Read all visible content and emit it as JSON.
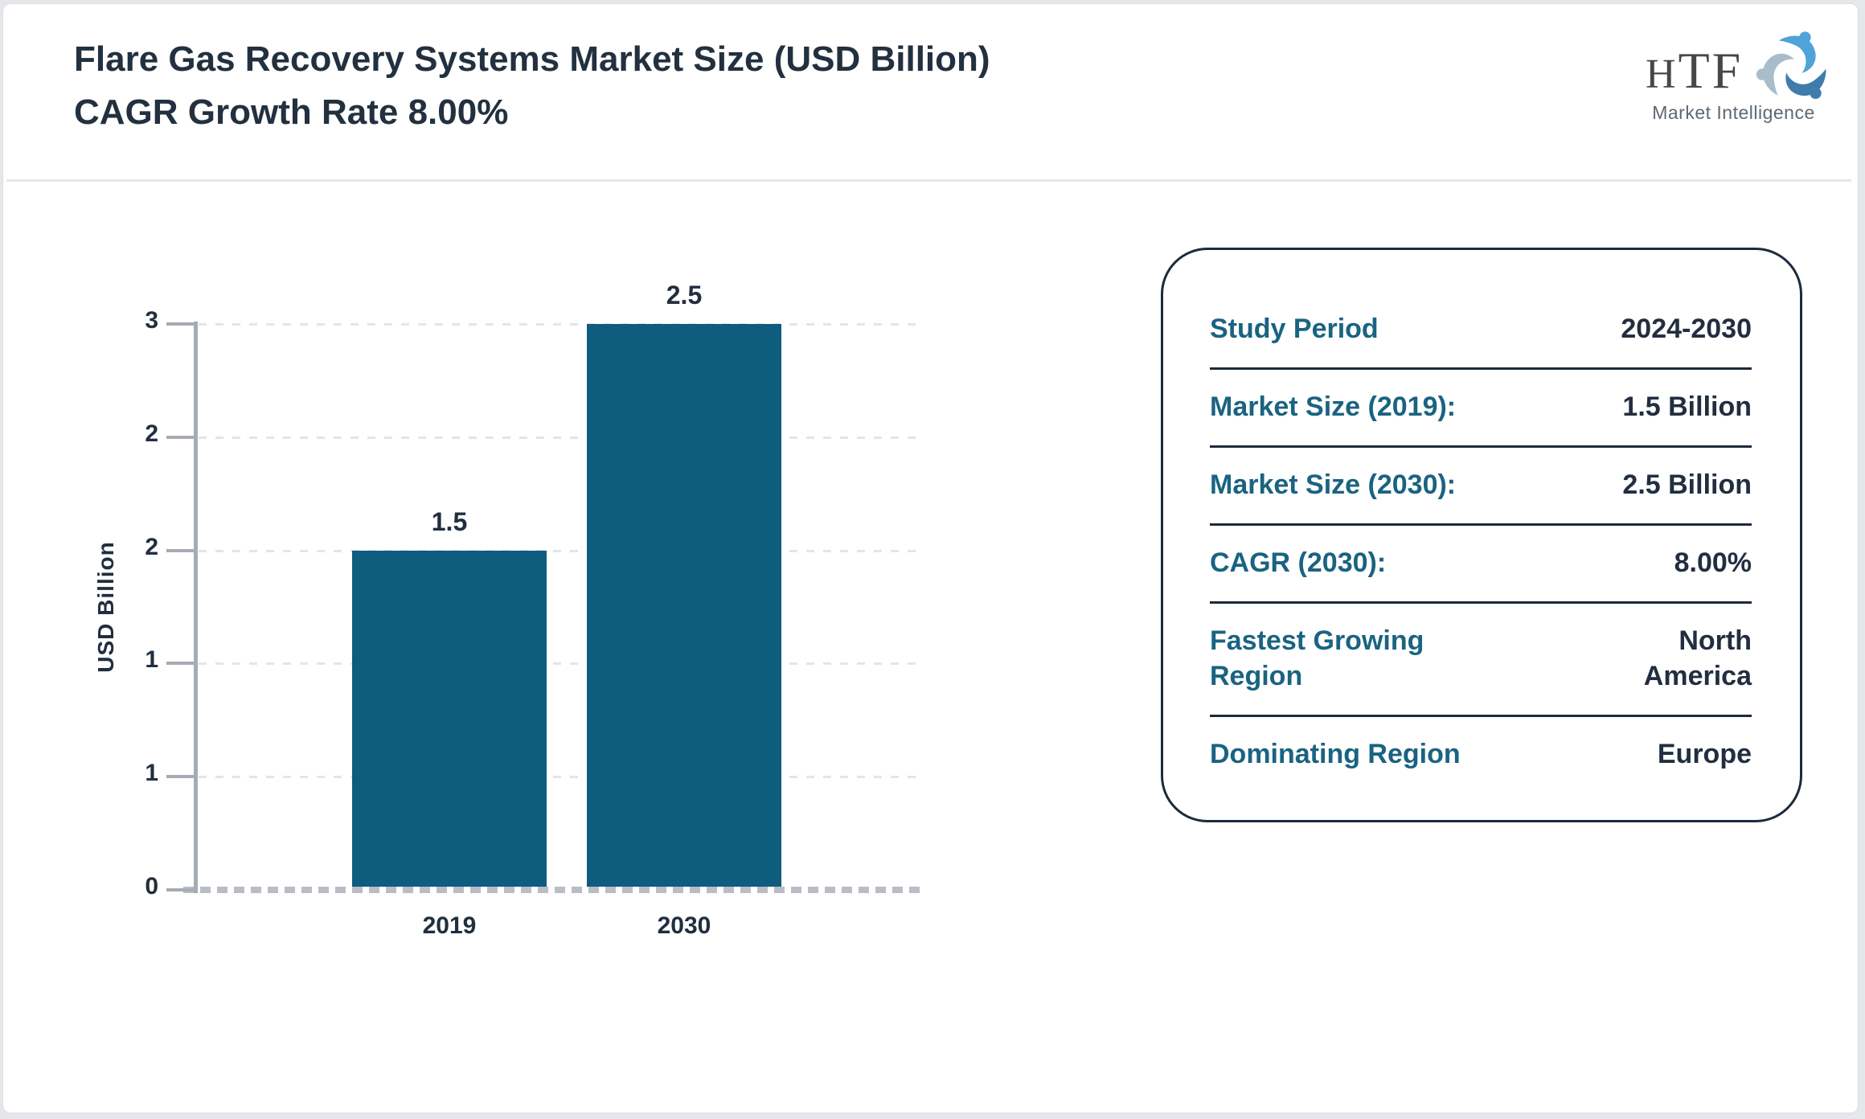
{
  "page": {
    "title": "Flare Gas Recovery Systems Market Size (USD Billion) CAGR Growth Rate 8.00%",
    "background_color": "#e6e7eb",
    "card_color": "#ffffff",
    "title_color": "#22303f"
  },
  "logo": {
    "text": "HTF",
    "subtext": "Market Intelligence",
    "icon": "htf-swirl-figures-icon",
    "colors": {
      "text": "#474747",
      "subtext": "#5d6872",
      "swirl_light_blue": "#4fa3d8",
      "swirl_dark_blue": "#3f7cab",
      "swirl_gray_blue": "#a9bcca"
    }
  },
  "chart_data": {
    "type": "bar",
    "title": "",
    "categories": [
      "2019",
      "2030"
    ],
    "values": [
      1.5,
      2.5
    ],
    "value_labels": [
      "1.5",
      "2.5"
    ],
    "bar_drawn_to_axis_values": [
      1.8,
      3.0
    ],
    "xlabel": "",
    "ylabel": "USD Billion",
    "ylim": [
      0,
      3
    ],
    "ytick_labels_bottom_to_top": [
      "0",
      "1",
      "1",
      "2",
      "2",
      "3"
    ],
    "grid": "horizontal-dashed",
    "legend": "none",
    "bar_color": "#0e5c7e",
    "text_color": "#212e3f",
    "axis_color": "#a6abb4"
  },
  "info_panel": {
    "border_color": "#1c2b3c",
    "label_color": "#1a6381",
    "value_color": "#222e40",
    "rows": [
      {
        "label": "Study Period",
        "value": "2024-2030"
      },
      {
        "label": "Market Size (2019):",
        "value": "1.5 Billion"
      },
      {
        "label": "Market Size (2030):",
        "value": "2.5 Billion"
      },
      {
        "label": "CAGR (2030):",
        "value": "8.00%"
      },
      {
        "label": "Fastest Growing Region",
        "value": "North America"
      },
      {
        "label": "Dominating Region",
        "value": "Europe"
      }
    ]
  }
}
